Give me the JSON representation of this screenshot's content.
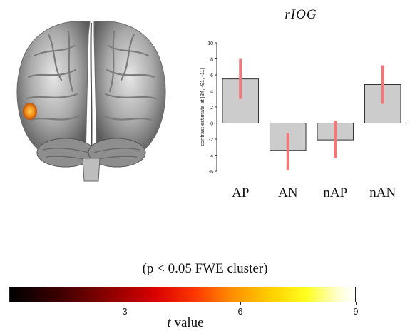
{
  "brain_figure": {
    "icon": "brain-render-rear-view",
    "blob_color": "#f08a1c"
  },
  "chart_data": {
    "type": "bar",
    "title": "rIOG",
    "ylabel": "contrast estimate at [34, -91, -11]",
    "categories": [
      "AP",
      "AN",
      "nAP",
      "nAN"
    ],
    "values": [
      5.5,
      -3.4,
      -2.1,
      4.8
    ],
    "errors": [
      [
        3.0,
        8.0
      ],
      [
        -5.9,
        -1.2
      ],
      [
        -4.4,
        0.3
      ],
      [
        2.4,
        7.2
      ]
    ],
    "ylim": [
      -6,
      10
    ],
    "yticks": [
      -6,
      -4,
      -2,
      0,
      2,
      4,
      6,
      8,
      10
    ],
    "bar_color": "#cccccc",
    "error_color": "#f07878"
  },
  "threshold_caption": "(p < 0.05 FWE cluster)",
  "colorbar": {
    "ticks": [
      "3",
      "6",
      "9"
    ],
    "tick_values": [
      3,
      6,
      9
    ],
    "range": [
      0,
      9
    ],
    "label_var": "t",
    "label_rest": " value"
  }
}
